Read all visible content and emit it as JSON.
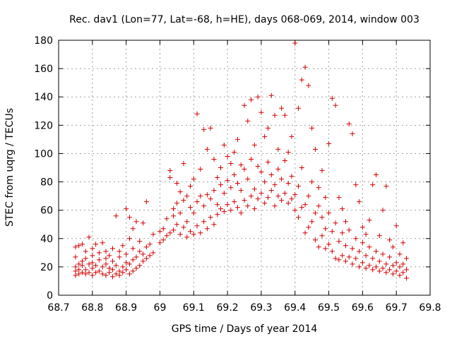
{
  "chart_data": {
    "type": "scatter",
    "title": "Rec. dav1 (Lon=77, Lat=-68, h=HE), days 068-069, 2014, window 003",
    "xlabel": "GPS time / Days of year 2014",
    "ylabel": "STEC from uqrg / TECUs",
    "xlim": [
      68.7,
      69.8
    ],
    "ylim": [
      0,
      180
    ],
    "x_ticks": [
      "68.7",
      "68.8",
      "68.9",
      "69",
      "69.1",
      "69.2",
      "69.3",
      "69.4",
      "69.5",
      "69.6",
      "69.7",
      "69.8"
    ],
    "y_ticks": [
      "0",
      "20",
      "40",
      "60",
      "80",
      "100",
      "120",
      "140",
      "160",
      "180"
    ],
    "grid": true,
    "marker": "plus",
    "color": "#d40000",
    "points": [
      [
        68.75,
        14
      ],
      [
        68.75,
        17
      ],
      [
        68.75,
        20
      ],
      [
        68.75,
        27
      ],
      [
        68.75,
        34
      ],
      [
        68.76,
        15
      ],
      [
        68.76,
        18
      ],
      [
        68.76,
        22
      ],
      [
        68.76,
        35
      ],
      [
        68.77,
        16
      ],
      [
        68.77,
        21
      ],
      [
        68.77,
        36
      ],
      [
        68.77,
        24
      ],
      [
        68.78,
        15
      ],
      [
        68.78,
        18
      ],
      [
        68.78,
        26
      ],
      [
        68.78,
        31
      ],
      [
        68.79,
        16
      ],
      [
        68.79,
        22
      ],
      [
        68.79,
        41
      ],
      [
        68.8,
        14
      ],
      [
        68.8,
        19
      ],
      [
        68.8,
        23
      ],
      [
        68.8,
        28
      ],
      [
        68.8,
        33
      ],
      [
        68.81,
        16
      ],
      [
        68.81,
        21
      ],
      [
        68.81,
        36
      ],
      [
        68.82,
        17
      ],
      [
        68.82,
        25
      ],
      [
        68.82,
        30
      ],
      [
        68.83,
        15
      ],
      [
        68.83,
        20
      ],
      [
        68.83,
        37
      ],
      [
        68.84,
        14
      ],
      [
        68.84,
        22
      ],
      [
        68.84,
        26
      ],
      [
        68.84,
        31
      ],
      [
        68.85,
        16
      ],
      [
        68.85,
        19
      ],
      [
        68.85,
        28
      ],
      [
        68.86,
        13
      ],
      [
        68.86,
        18
      ],
      [
        68.86,
        24
      ],
      [
        68.86,
        33
      ],
      [
        68.87,
        15
      ],
      [
        68.87,
        21
      ],
      [
        68.87,
        56
      ],
      [
        68.88,
        14
      ],
      [
        68.88,
        17
      ],
      [
        68.88,
        27
      ],
      [
        68.88,
        31
      ],
      [
        68.89,
        16
      ],
      [
        68.89,
        20
      ],
      [
        68.89,
        35
      ],
      [
        68.9,
        18
      ],
      [
        68.9,
        23
      ],
      [
        68.9,
        29
      ],
      [
        68.9,
        61
      ],
      [
        68.91,
        15
      ],
      [
        68.91,
        22
      ],
      [
        68.91,
        40
      ],
      [
        68.91,
        55
      ],
      [
        68.92,
        17
      ],
      [
        68.92,
        25
      ],
      [
        68.92,
        33
      ],
      [
        68.92,
        47
      ],
      [
        68.93,
        19
      ],
      [
        68.93,
        27
      ],
      [
        68.93,
        52
      ],
      [
        68.94,
        21
      ],
      [
        68.94,
        31
      ],
      [
        68.94,
        38
      ],
      [
        68.95,
        24
      ],
      [
        68.95,
        29
      ],
      [
        68.95,
        51
      ],
      [
        68.96,
        26
      ],
      [
        68.96,
        34
      ],
      [
        68.96,
        66
      ],
      [
        68.97,
        28
      ],
      [
        68.97,
        36
      ],
      [
        68.98,
        30
      ],
      [
        68.98,
        43
      ],
      [
        69.0,
        37
      ],
      [
        69.0,
        45
      ],
      [
        69.01,
        39
      ],
      [
        69.01,
        47
      ],
      [
        69.02,
        42
      ],
      [
        69.02,
        54
      ],
      [
        69.03,
        44
      ],
      [
        69.03,
        83
      ],
      [
        69.03,
        88
      ],
      [
        69.04,
        46
      ],
      [
        69.04,
        56
      ],
      [
        69.04,
        61
      ],
      [
        69.05,
        50
      ],
      [
        69.05,
        65
      ],
      [
        69.05,
        79
      ],
      [
        69.06,
        43
      ],
      [
        69.06,
        58
      ],
      [
        69.06,
        73
      ],
      [
        69.07,
        48
      ],
      [
        69.07,
        67
      ],
      [
        69.07,
        93
      ],
      [
        69.08,
        41
      ],
      [
        69.08,
        52
      ],
      [
        69.08,
        70
      ],
      [
        69.09,
        45
      ],
      [
        69.09,
        62
      ],
      [
        69.09,
        77
      ],
      [
        69.1,
        43
      ],
      [
        69.1,
        58
      ],
      [
        69.1,
        82
      ],
      [
        69.11,
        49
      ],
      [
        69.11,
        66
      ],
      [
        69.11,
        128
      ],
      [
        69.12,
        44
      ],
      [
        69.12,
        70
      ],
      [
        69.12,
        89
      ],
      [
        69.13,
        52
      ],
      [
        69.13,
        63
      ],
      [
        69.13,
        117
      ],
      [
        69.14,
        47
      ],
      [
        69.14,
        71
      ],
      [
        69.14,
        103
      ],
      [
        69.15,
        55
      ],
      [
        69.15,
        68
      ],
      [
        69.15,
        118
      ],
      [
        69.16,
        50
      ],
      [
        69.16,
        74
      ],
      [
        69.16,
        96
      ],
      [
        69.17,
        57
      ],
      [
        69.17,
        64
      ],
      [
        69.17,
        83
      ],
      [
        69.18,
        61
      ],
      [
        69.18,
        78
      ],
      [
        69.18,
        90
      ],
      [
        69.19,
        59
      ],
      [
        69.19,
        72
      ],
      [
        69.19,
        106
      ],
      [
        69.2,
        64
      ],
      [
        69.2,
        81
      ],
      [
        69.2,
        98
      ],
      [
        69.21,
        60
      ],
      [
        69.21,
        76
      ],
      [
        69.21,
        93
      ],
      [
        69.22,
        66
      ],
      [
        69.22,
        85
      ],
      [
        69.22,
        101
      ],
      [
        69.23,
        62
      ],
      [
        69.23,
        79
      ],
      [
        69.23,
        110
      ],
      [
        69.24,
        58
      ],
      [
        69.24,
        74
      ],
      [
        69.24,
        92
      ],
      [
        69.25,
        67
      ],
      [
        69.25,
        89
      ],
      [
        69.25,
        134
      ],
      [
        69.26,
        63
      ],
      [
        69.26,
        82
      ],
      [
        69.26,
        123
      ],
      [
        69.27,
        70
      ],
      [
        69.27,
        96
      ],
      [
        69.27,
        138
      ],
      [
        69.28,
        61
      ],
      [
        69.28,
        75
      ],
      [
        69.28,
        106
      ],
      [
        69.29,
        68
      ],
      [
        69.29,
        91
      ],
      [
        69.29,
        140
      ],
      [
        69.3,
        72
      ],
      [
        69.3,
        87
      ],
      [
        69.3,
        129
      ],
      [
        69.31,
        65
      ],
      [
        69.31,
        80
      ],
      [
        69.31,
        112
      ],
      [
        69.32,
        69
      ],
      [
        69.32,
        94
      ],
      [
        69.32,
        118
      ],
      [
        69.33,
        74
      ],
      [
        69.33,
        85
      ],
      [
        69.33,
        141
      ],
      [
        69.34,
        63
      ],
      [
        69.34,
        78
      ],
      [
        69.34,
        127
      ],
      [
        69.35,
        70
      ],
      [
        69.35,
        89
      ],
      [
        69.35,
        103
      ],
      [
        69.36,
        67
      ],
      [
        69.36,
        82
      ],
      [
        69.36,
        132
      ],
      [
        69.37,
        72
      ],
      [
        69.37,
        95
      ],
      [
        69.37,
        127
      ],
      [
        69.38,
        65
      ],
      [
        69.38,
        79
      ],
      [
        69.38,
        101
      ],
      [
        69.39,
        68
      ],
      [
        69.39,
        84
      ],
      [
        69.39,
        112
      ],
      [
        69.4,
        60
      ],
      [
        69.4,
        71
      ],
      [
        69.4,
        178
      ],
      [
        69.41,
        55
      ],
      [
        69.41,
        77
      ],
      [
        69.41,
        132
      ],
      [
        69.42,
        62
      ],
      [
        69.42,
        90
      ],
      [
        69.42,
        152
      ],
      [
        69.43,
        44
      ],
      [
        69.43,
        64
      ],
      [
        69.43,
        161
      ],
      [
        69.44,
        48
      ],
      [
        69.44,
        70
      ],
      [
        69.44,
        148
      ],
      [
        69.45,
        52
      ],
      [
        69.45,
        80
      ],
      [
        69.45,
        118
      ],
      [
        69.46,
        39
      ],
      [
        69.46,
        58
      ],
      [
        69.46,
        103
      ],
      [
        69.47,
        34
      ],
      [
        69.47,
        63
      ],
      [
        69.47,
        76
      ],
      [
        69.48,
        42
      ],
      [
        69.48,
        55
      ],
      [
        69.48,
        88
      ],
      [
        69.49,
        33
      ],
      [
        69.49,
        47
      ],
      [
        69.49,
        69
      ],
      [
        69.5,
        36
      ],
      [
        69.5,
        58
      ],
      [
        69.5,
        107
      ],
      [
        69.51,
        31
      ],
      [
        69.51,
        45
      ],
      [
        69.51,
        139
      ],
      [
        69.52,
        26
      ],
      [
        69.52,
        51
      ],
      [
        69.52,
        134
      ],
      [
        69.53,
        25
      ],
      [
        69.53,
        38
      ],
      [
        69.53,
        69
      ],
      [
        69.54,
        28
      ],
      [
        69.54,
        44
      ],
      [
        69.54,
        61
      ],
      [
        69.55,
        24
      ],
      [
        69.55,
        35
      ],
      [
        69.55,
        52
      ],
      [
        69.56,
        27
      ],
      [
        69.56,
        46
      ],
      [
        69.56,
        121
      ],
      [
        69.57,
        22
      ],
      [
        69.57,
        33
      ],
      [
        69.57,
        114
      ],
      [
        69.58,
        26
      ],
      [
        69.58,
        40
      ],
      [
        69.58,
        78
      ],
      [
        69.59,
        20
      ],
      [
        69.59,
        31
      ],
      [
        69.59,
        66
      ],
      [
        69.6,
        23
      ],
      [
        69.6,
        37
      ],
      [
        69.6,
        48
      ],
      [
        69.61,
        19
      ],
      [
        69.61,
        28
      ],
      [
        69.61,
        43
      ],
      [
        69.62,
        21
      ],
      [
        69.62,
        34
      ],
      [
        69.62,
        53
      ],
      [
        69.63,
        18
      ],
      [
        69.63,
        26
      ],
      [
        69.63,
        78
      ],
      [
        69.64,
        20
      ],
      [
        69.64,
        31
      ],
      [
        69.64,
        85
      ],
      [
        69.65,
        17
      ],
      [
        69.65,
        24
      ],
      [
        69.65,
        42
      ],
      [
        69.66,
        19
      ],
      [
        69.66,
        29
      ],
      [
        69.66,
        60
      ],
      [
        69.67,
        16
      ],
      [
        69.67,
        22
      ],
      [
        69.67,
        77
      ],
      [
        69.68,
        18
      ],
      [
        69.68,
        27
      ],
      [
        69.68,
        39
      ],
      [
        69.69,
        15
      ],
      [
        69.69,
        21
      ],
      [
        69.69,
        34
      ],
      [
        69.7,
        17
      ],
      [
        69.7,
        23
      ],
      [
        69.7,
        49
      ],
      [
        69.71,
        14
      ],
      [
        69.71,
        20
      ],
      [
        69.71,
        29
      ],
      [
        69.72,
        16
      ],
      [
        69.72,
        22
      ],
      [
        69.72,
        37
      ],
      [
        69.73,
        12
      ],
      [
        69.73,
        18
      ],
      [
        69.73,
        26
      ]
    ]
  }
}
